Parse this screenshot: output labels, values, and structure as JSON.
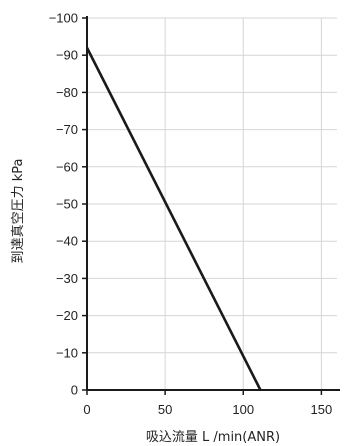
{
  "chart_data": {
    "type": "line",
    "xlabel": "吸込流量 L /min(ANR)",
    "ylabel": "到達真空圧力 kPa",
    "xlim": [
      0,
      160
    ],
    "ylim": [
      0,
      -100
    ],
    "x_ticks": [
      0,
      50,
      100,
      150
    ],
    "y_ticks": [
      0,
      -10,
      -20,
      -30,
      -40,
      -50,
      -60,
      -70,
      -80,
      -90,
      -100
    ],
    "x_tick_labels": [
      "0",
      "50",
      "100",
      "150"
    ],
    "y_tick_labels": [
      "0",
      "−10",
      "−20",
      "−30",
      "−40",
      "−50",
      "−60",
      "−70",
      "−80",
      "−90",
      "−100"
    ],
    "grid": true,
    "y_inverted": true,
    "series": [
      {
        "x": [
          0,
          111
        ],
        "y": [
          -92,
          0
        ],
        "color": "#1a1a1a"
      }
    ],
    "colors": {
      "grid": "#d6d6d6",
      "axis": "#1a1a1a",
      "line": "#1a1a1a"
    }
  }
}
